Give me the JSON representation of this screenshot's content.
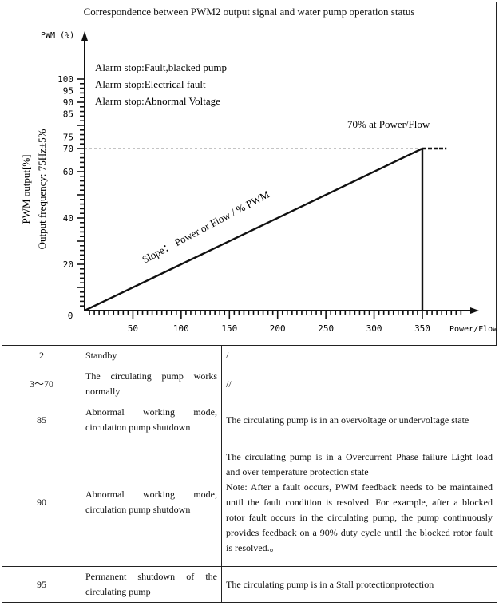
{
  "table_title": "Correspondence between PWM2 output signal and water pump operation status",
  "chart_data": {
    "type": "line",
    "y_axis_top_label": "PWM (%)",
    "x_axis_end_label": "Power/Flow",
    "ylabel_line1": "PWM output[%]",
    "ylabel_line2": "Output frequency:  75Hz±5%",
    "x_ticks": [
      "50",
      "100",
      "150",
      "200",
      "250",
      "300",
      "350"
    ],
    "y_ticks": [
      "20",
      "40",
      "60",
      "70",
      "75",
      "85",
      "90",
      "95",
      "100"
    ],
    "origin_label": "0",
    "xlim": [
      0,
      400
    ],
    "ylim": [
      0,
      104
    ],
    "series": [
      {
        "x": [
          0,
          350
        ],
        "y": [
          0,
          70
        ]
      }
    ],
    "dashed_reference_y": 70,
    "plateau": {
      "x": [
        350,
        375
      ],
      "y": 70
    },
    "annotations": {
      "alarm_1": "Alarm stop:Fault,blacked pump",
      "alarm_2": "Alarm stop:Electrical fault",
      "alarm_3": "Alarm stop:Abnormal Voltage",
      "max_label": "70% at Power/Flow",
      "slope_label": "Slope： Power or Flow / % PWM"
    }
  },
  "rows": [
    {
      "pwm": "2",
      "status": "Standby",
      "description": "/"
    },
    {
      "pwm": "3～70",
      "status": "The circulating pump works normally",
      "description": "//"
    },
    {
      "pwm": "85",
      "status": "Abnormal working mode, circulation pump shutdown",
      "description": "The circulating pump is in an overvoltage or undervoltage state"
    },
    {
      "pwm": "90",
      "status": "Abnormal working mode, circulation pump shutdown",
      "description": "The circulating pump is in a Overcurrent Phase failure Light load and over temperature protection state",
      "note": "Note: After a fault occurs, PWM feedback needs to be maintained until the fault condition is resolved. For example, after a blocked rotor fault occurs in the circulating pump, the pump continuously provides feedback on a 90% duty cycle until the blocked rotor fault is resolved.。"
    },
    {
      "pwm": "95",
      "status": "Permanent shutdown of the circulating pump",
      "description": "The circulating pump is in a   Stall protectionprotection"
    }
  ]
}
